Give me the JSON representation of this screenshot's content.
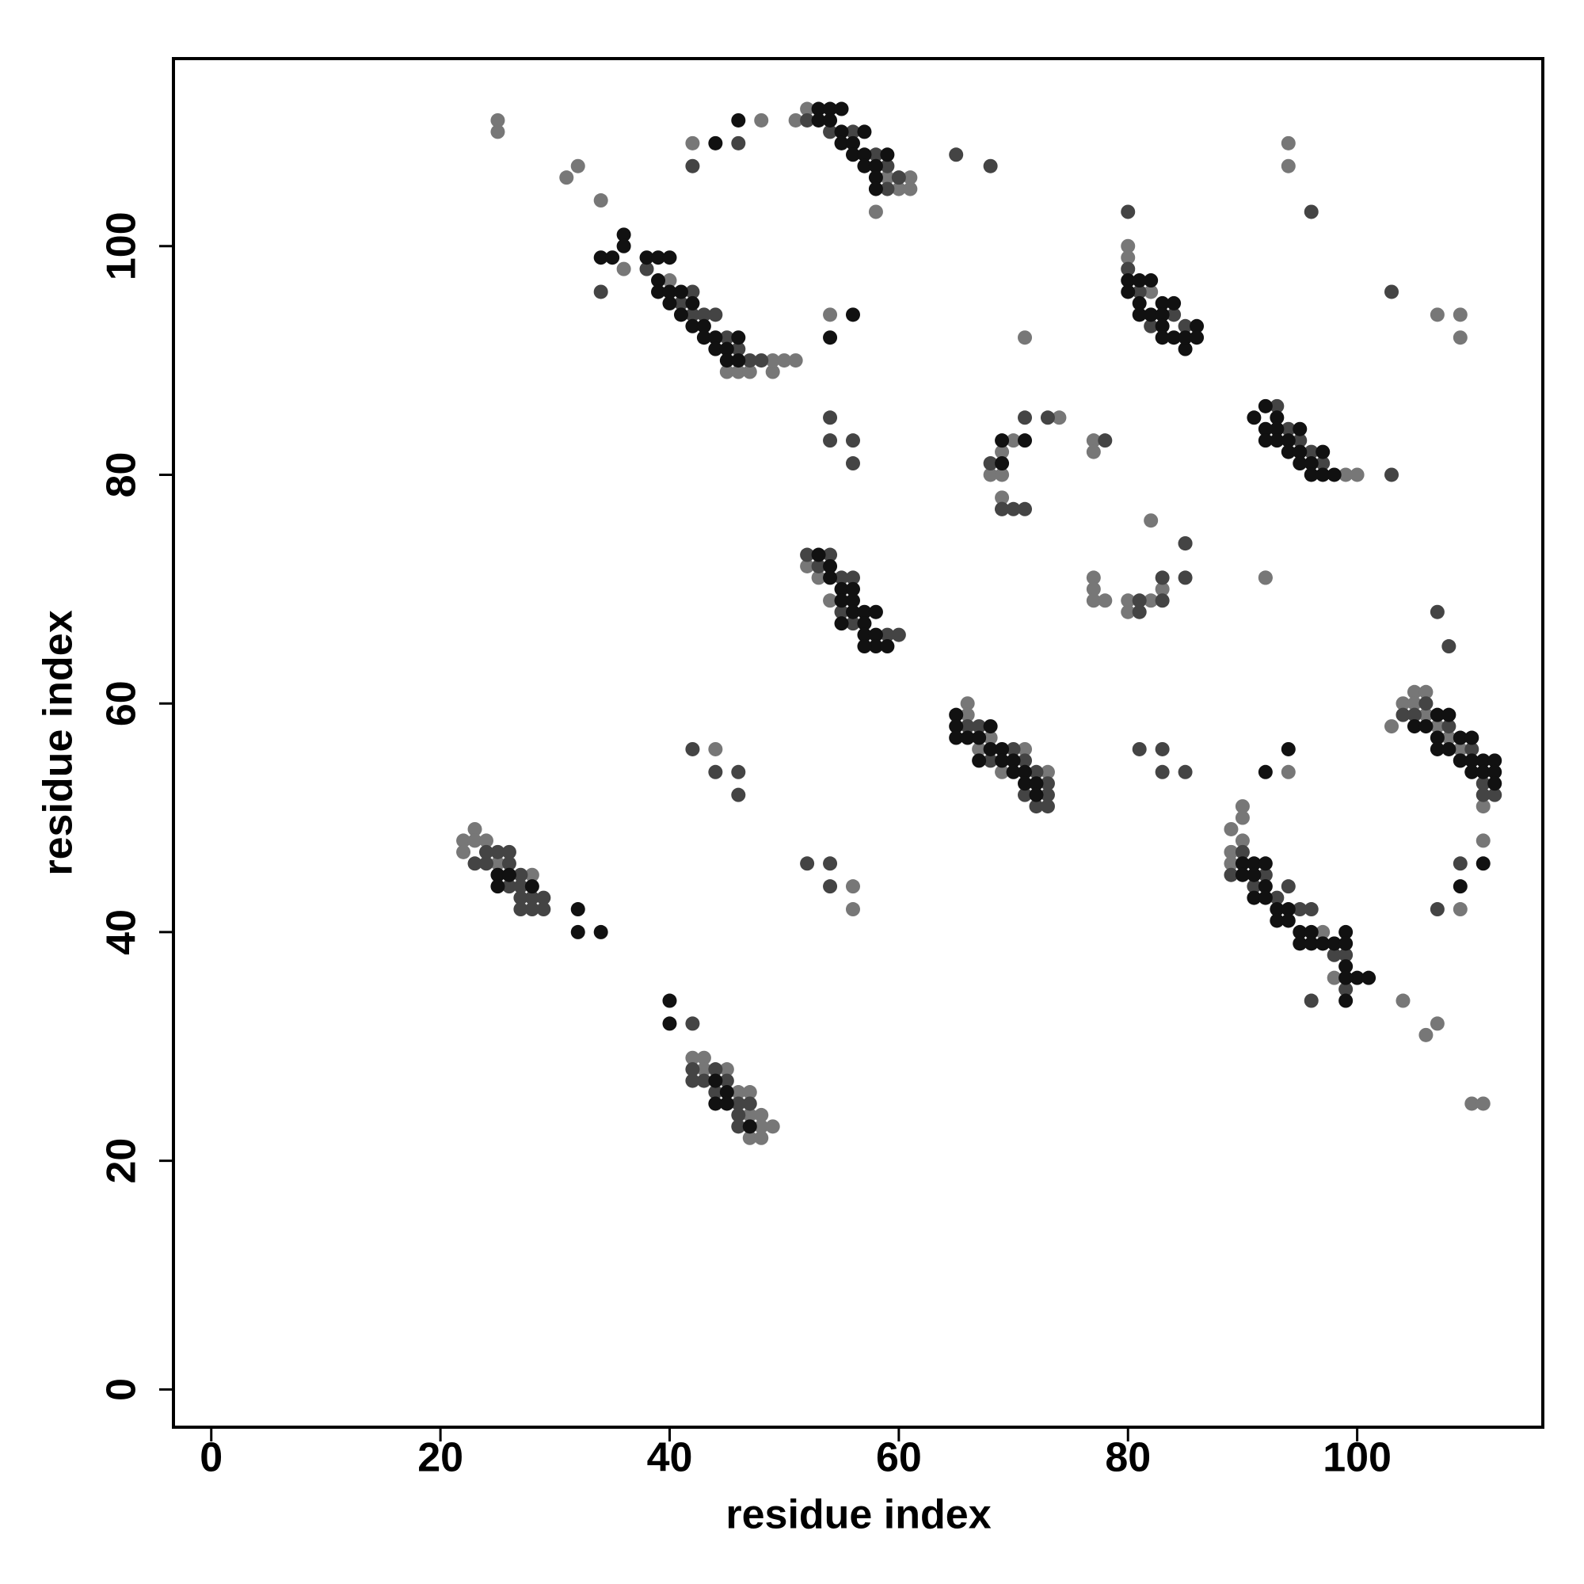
{
  "chart_data": {
    "type": "scatter",
    "xlabel": "residue index",
    "ylabel": "residue index",
    "xlim": [
      -3.3,
      116.2
    ],
    "ylim": [
      -3.3,
      116.4
    ],
    "xticks": [
      0,
      20,
      40,
      60,
      80,
      100
    ],
    "yticks": [
      0,
      20,
      40,
      60,
      80,
      100
    ],
    "series": [
      {
        "color": "#777777",
        "x": [
          25,
          25,
          31,
          32,
          34,
          36,
          40,
          45,
          46,
          47,
          49,
          49,
          50,
          51,
          54,
          71,
          42,
          48,
          51,
          52,
          59,
          60,
          61,
          61,
          58,
          74,
          70,
          69,
          68,
          69,
          69,
          77,
          77,
          52,
          53,
          54,
          77,
          77,
          77,
          78,
          80,
          80,
          82,
          83,
          82,
          85,
          80,
          80,
          82,
          92,
          94,
          94,
          107,
          109,
          109,
          99,
          100,
          92,
          66,
          66,
          68,
          69,
          71,
          73,
          67,
          44,
          94,
          103,
          105,
          106,
          104,
          105,
          106,
          107,
          108,
          109,
          110,
          111,
          111,
          109,
          90,
          90,
          89,
          89,
          89,
          90,
          97,
          98,
          104,
          106,
          107,
          110,
          111,
          22,
          22,
          23,
          23,
          24,
          25,
          28,
          56,
          56,
          42,
          43,
          43,
          45,
          46,
          47,
          47,
          48,
          48,
          49,
          47,
          48
        ],
        "y": [
          111,
          110,
          106,
          107,
          104,
          98,
          97,
          89,
          89,
          89,
          89,
          90,
          90,
          90,
          94,
          92,
          109,
          111,
          111,
          112,
          106,
          105,
          106,
          105,
          103,
          85,
          83,
          82,
          80,
          80,
          78,
          83,
          82,
          72,
          71,
          69,
          71,
          70,
          69,
          69,
          100,
          99,
          96,
          70,
          76,
          74,
          69,
          68,
          69,
          71,
          109,
          107,
          94,
          94,
          92,
          80,
          80,
          71,
          60,
          59,
          57,
          54,
          56,
          54,
          56,
          56,
          54,
          58,
          61,
          61,
          60,
          60,
          59,
          58,
          57,
          56,
          54,
          51,
          48,
          42,
          51,
          50,
          49,
          47,
          46,
          48,
          40,
          36,
          34,
          31,
          32,
          25,
          25,
          48,
          47,
          49,
          48,
          48,
          46,
          45,
          44,
          42,
          29,
          29,
          28,
          28,
          26,
          26,
          24,
          24,
          23,
          23,
          22,
          22
        ]
      },
      {
        "color": "#444444",
        "x": [
          34,
          38,
          42,
          43,
          44,
          45,
          46,
          47,
          48,
          41,
          42,
          42,
          46,
          52,
          54,
          56,
          58,
          59,
          59,
          60,
          65,
          68,
          54,
          54,
          56,
          56,
          71,
          73,
          69,
          68,
          69,
          70,
          71,
          78,
          52,
          53,
          54,
          55,
          56,
          59,
          60,
          55,
          56,
          81,
          81,
          83,
          83,
          85,
          85,
          80,
          80,
          81,
          82,
          84,
          85,
          96,
          103,
          93,
          94,
          96,
          97,
          95,
          103,
          66,
          67,
          68,
          70,
          71,
          72,
          72,
          73,
          73,
          73,
          71,
          81,
          83,
          83,
          85,
          42,
          44,
          46,
          46,
          104,
          105,
          106,
          108,
          109,
          110,
          111,
          112,
          111,
          109,
          107,
          108,
          107,
          89,
          90,
          91,
          92,
          93,
          94,
          95,
          96,
          97,
          98,
          99,
          96,
          99,
          23,
          24,
          25,
          26,
          26,
          27,
          27,
          27,
          28,
          28,
          29,
          29,
          27,
          26,
          24,
          54,
          52,
          54,
          42,
          42,
          42,
          43,
          44,
          44,
          45,
          46,
          46,
          47,
          46
        ],
        "y": [
          96,
          98,
          96,
          94,
          94,
          92,
          91,
          90,
          90,
          95,
          94,
          107,
          109,
          111,
          110,
          110,
          108,
          107,
          105,
          106,
          108,
          107,
          85,
          83,
          83,
          81,
          85,
          85,
          77,
          81,
          77,
          77,
          77,
          83,
          73,
          72,
          73,
          71,
          71,
          66,
          66,
          68,
          67,
          69,
          68,
          71,
          69,
          74,
          71,
          103,
          98,
          96,
          93,
          94,
          93,
          103,
          96,
          86,
          84,
          82,
          81,
          83,
          80,
          58,
          58,
          55,
          56,
          55,
          54,
          51,
          52,
          51,
          53,
          52,
          56,
          56,
          54,
          54,
          56,
          54,
          54,
          52,
          59,
          59,
          60,
          58,
          55,
          56,
          53,
          52,
          52,
          46,
          42,
          65,
          68,
          45,
          47,
          44,
          45,
          43,
          44,
          42,
          42,
          39,
          38,
          38,
          34,
          35,
          46,
          47,
          47,
          47,
          46,
          45,
          44,
          43,
          42,
          43,
          43,
          42,
          42,
          44,
          46,
          46,
          46,
          44,
          32,
          28,
          27,
          27,
          28,
          26,
          27,
          25,
          24,
          25,
          23
        ]
      },
      {
        "color": "#111111",
        "x": [
          34,
          35,
          36,
          36,
          38,
          39,
          40,
          39,
          39,
          40,
          40,
          41,
          42,
          41,
          42,
          43,
          43,
          44,
          44,
          45,
          45,
          46,
          46,
          54,
          56,
          44,
          46,
          53,
          54,
          55,
          53,
          54,
          55,
          55,
          56,
          56,
          57,
          57,
          58,
          58,
          58,
          59,
          57,
          69,
          69,
          71,
          53,
          54,
          54,
          55,
          55,
          56,
          56,
          57,
          57,
          57,
          58,
          58,
          59,
          57,
          58,
          55,
          56,
          80,
          80,
          81,
          81,
          81,
          82,
          82,
          83,
          83,
          83,
          83,
          84,
          84,
          85,
          85,
          86,
          86,
          91,
          92,
          92,
          92,
          93,
          93,
          93,
          94,
          94,
          95,
          95,
          95,
          96,
          96,
          97,
          97,
          98,
          65,
          65,
          65,
          66,
          67,
          67,
          68,
          68,
          69,
          69,
          70,
          70,
          71,
          71,
          72,
          72,
          92,
          94,
          105,
          106,
          107,
          107,
          107,
          108,
          108,
          109,
          109,
          110,
          110,
          110,
          111,
          111,
          112,
          112,
          112,
          111,
          109,
          90,
          90,
          91,
          91,
          91,
          92,
          92,
          92,
          93,
          93,
          94,
          94,
          95,
          95,
          96,
          96,
          97,
          98,
          99,
          99,
          99,
          99,
          100,
          101,
          99,
          25,
          25,
          26,
          28,
          32,
          32,
          34,
          40,
          40,
          44,
          44,
          45,
          45,
          47
        ],
        "y": [
          99,
          99,
          101,
          100,
          99,
          99,
          99,
          97,
          96,
          95,
          96,
          96,
          95,
          94,
          93,
          93,
          92,
          92,
          91,
          91,
          90,
          92,
          90,
          92,
          94,
          109,
          111,
          112,
          112,
          112,
          111,
          111,
          110,
          109,
          109,
          108,
          108,
          107,
          107,
          106,
          105,
          108,
          110,
          83,
          81,
          83,
          73,
          72,
          71,
          70,
          69,
          69,
          68,
          68,
          67,
          66,
          66,
          65,
          65,
          65,
          68,
          67,
          70,
          97,
          96,
          97,
          95,
          94,
          97,
          94,
          95,
          94,
          93,
          92,
          95,
          92,
          91,
          92,
          93,
          92,
          85,
          86,
          84,
          83,
          85,
          84,
          83,
          83,
          82,
          84,
          82,
          81,
          81,
          80,
          82,
          80,
          80,
          59,
          58,
          57,
          57,
          57,
          55,
          58,
          56,
          56,
          55,
          55,
          54,
          54,
          53,
          53,
          52,
          54,
          56,
          58,
          58,
          59,
          57,
          56,
          59,
          56,
          57,
          55,
          57,
          55,
          54,
          55,
          54,
          55,
          54,
          53,
          46,
          44,
          46,
          45,
          46,
          45,
          43,
          46,
          44,
          43,
          42,
          41,
          42,
          41,
          40,
          39,
          40,
          39,
          39,
          39,
          40,
          39,
          37,
          34,
          36,
          36,
          36,
          45,
          44,
          45,
          44,
          42,
          40,
          40,
          34,
          32,
          27,
          25,
          26,
          25,
          23
        ]
      }
    ]
  }
}
